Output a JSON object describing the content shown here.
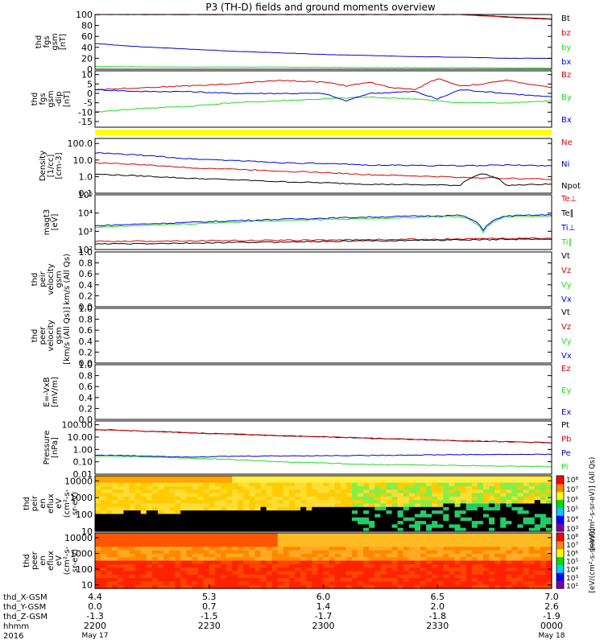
{
  "title": "P3 (TH-D) fields and ground moments overview",
  "colors": {
    "black": "#000000",
    "red": "#dd0000",
    "green": "#22dd22",
    "blue": "#0000dd",
    "yellow": "#ffff00"
  },
  "chart_data": [
    {
      "type": "line",
      "panel": "fgs-gsm",
      "ylabel": [
        "thd",
        "fgs",
        "gsm",
        "[nT]"
      ],
      "ylim": [
        0,
        100
      ],
      "yticks": [
        "0",
        "20",
        "40",
        "60",
        "80",
        "100"
      ],
      "ytick_values": [
        0,
        20,
        40,
        60,
        80,
        100
      ],
      "series": [
        {
          "name": "Bt",
          "color": "#000000",
          "x": [
            0,
            0.2,
            0.4,
            0.6,
            0.8,
            0.9,
            1
          ],
          "y": [
            100,
            100,
            100,
            100,
            100,
            96,
            92
          ]
        },
        {
          "name": "bz",
          "color": "#dd0000",
          "x": [
            0,
            0.2,
            0.4,
            0.6,
            0.8,
            0.9,
            1
          ],
          "y": [
            100,
            100,
            100,
            100,
            100,
            95,
            91
          ]
        },
        {
          "name": "by",
          "color": "#22dd22",
          "x": [
            0,
            0.2,
            0.4,
            0.6,
            0.8,
            1
          ],
          "y": [
            5,
            4,
            4,
            3,
            3,
            2
          ]
        },
        {
          "name": "bx",
          "color": "#0000dd",
          "x": [
            0,
            0.1,
            0.2,
            0.3,
            0.4,
            0.5,
            0.6,
            0.7,
            0.8,
            0.9,
            1
          ],
          "y": [
            47,
            41,
            37,
            33,
            30,
            27,
            25,
            23,
            22,
            20,
            20
          ]
        }
      ]
    },
    {
      "type": "line",
      "panel": "fgs-gsm-dip",
      "ylabel": [
        "thd",
        "fgs",
        "gsm",
        "-dip",
        "[nT]"
      ],
      "ylim": [
        -18,
        12
      ],
      "yticks": [
        "-15",
        "-10",
        "-5",
        "0",
        "5",
        "10"
      ],
      "ytick_values": [
        -15,
        -10,
        -5,
        0,
        5,
        10
      ],
      "series": [
        {
          "name": "Bz",
          "color": "#dd0000",
          "x": [
            0,
            0.1,
            0.2,
            0.3,
            0.4,
            0.5,
            0.55,
            0.6,
            0.65,
            0.7,
            0.75,
            0.8,
            0.85,
            0.9,
            0.95,
            1
          ],
          "y": [
            2,
            3,
            4,
            5,
            7,
            6,
            4,
            6,
            3,
            2,
            8,
            4,
            5,
            7,
            5,
            3
          ]
        },
        {
          "name": "By",
          "color": "#22dd22",
          "x": [
            0,
            0.1,
            0.2,
            0.3,
            0.4,
            0.5,
            0.6,
            0.7,
            0.8,
            0.9,
            1
          ],
          "y": [
            -10,
            -8,
            -7,
            -5,
            -4,
            -3,
            -2,
            -3,
            -5,
            -5,
            -4
          ]
        },
        {
          "name": "Bx",
          "color": "#0000dd",
          "x": [
            0,
            0.1,
            0.2,
            0.3,
            0.4,
            0.5,
            0.55,
            0.6,
            0.7,
            0.75,
            0.8,
            0.9,
            1
          ],
          "y": [
            2,
            1,
            1,
            0,
            0,
            0,
            -4,
            0,
            1,
            -3,
            2,
            0,
            -2
          ]
        }
      ]
    },
    {
      "type": "line",
      "panel": "density",
      "yscale": "log",
      "ylabel": [
        "Density",
        "[1/cc]",
        "[cm-3]"
      ],
      "ylim": [
        0.1,
        200
      ],
      "yticks": [
        "0.1",
        "1.0",
        "10.0",
        "100.0"
      ],
      "ytick_values": [
        0.1,
        1,
        10,
        100
      ],
      "series": [
        {
          "name": "Ne",
          "color": "#dd0000",
          "x": [
            0,
            0.2,
            0.4,
            0.6,
            0.8,
            1
          ],
          "y": [
            7,
            3.5,
            2.2,
            1.3,
            0.9,
            0.7
          ]
        },
        {
          "name": "Ni",
          "color": "#0000dd",
          "x": [
            0,
            0.2,
            0.4,
            0.6,
            0.8,
            0.9,
            1
          ],
          "y": [
            27,
            12,
            7,
            5,
            4.5,
            5,
            4.5
          ]
        },
        {
          "name": "Npot",
          "color": "#000000",
          "x": [
            0,
            0.2,
            0.4,
            0.6,
            0.8,
            0.85,
            0.9,
            1
          ],
          "y": [
            1.4,
            0.8,
            0.5,
            0.35,
            0.3,
            1.5,
            0.3,
            0.35
          ]
        }
      ]
    },
    {
      "type": "line",
      "panel": "temperature",
      "yscale": "log",
      "ylabel": [
        "magt3",
        "[eV]"
      ],
      "ylim": [
        100,
        100000
      ],
      "yticks": [
        "10²",
        "10³",
        "10⁴",
        "10⁵"
      ],
      "ytick_values": [
        100,
        1000,
        10000,
        100000
      ],
      "series": [
        {
          "name": "Te⊥",
          "color": "#dd0000",
          "x": [
            0,
            0.2,
            0.4,
            0.6,
            0.8,
            1
          ],
          "y": [
            280,
            300,
            320,
            350,
            380,
            420
          ]
        },
        {
          "name": "Te∥",
          "color": "#000000",
          "x": [
            0,
            0.2,
            0.4,
            0.6,
            0.8,
            1
          ],
          "y": [
            200,
            220,
            260,
            300,
            340,
            380
          ]
        },
        {
          "name": "Ti⊥",
          "color": "#0000dd",
          "x": [
            0,
            0.2,
            0.4,
            0.6,
            0.8,
            0.85,
            0.9,
            1
          ],
          "y": [
            2000,
            3000,
            4500,
            6000,
            7500,
            1200,
            7000,
            8000
          ]
        },
        {
          "name": "Ti∥",
          "color": "#22dd22",
          "x": [
            0,
            0.2,
            0.4,
            0.6,
            0.8,
            0.85,
            0.9,
            1
          ],
          "y": [
            1600,
            2500,
            3800,
            5000,
            6500,
            900,
            6000,
            7000
          ]
        }
      ]
    },
    {
      "type": "line",
      "panel": "peir-velocity",
      "ylabel": [
        "thd",
        "peir",
        "velocity",
        "gsm",
        "km/s (All Qs)"
      ],
      "ylim": [
        0,
        1
      ],
      "yticks": [
        "0.0",
        "0.2",
        "0.4",
        "0.6",
        "0.8",
        "1.0"
      ],
      "ytick_values": [
        0,
        0.2,
        0.4,
        0.6,
        0.8,
        1
      ],
      "series": [
        {
          "name": "Vt",
          "color": "#000000"
        },
        {
          "name": "Vz",
          "color": "#dd0000"
        },
        {
          "name": "Vy",
          "color": "#22dd22"
        },
        {
          "name": "Vx",
          "color": "#0000dd"
        }
      ]
    },
    {
      "type": "line",
      "panel": "peer-velocity",
      "ylabel": [
        "thd",
        "peer",
        "velocity",
        "gsm",
        "[km/s (All Qs)]"
      ],
      "ylim": [
        0,
        1
      ],
      "yticks": [
        "0.0",
        "0.2",
        "0.4",
        "0.6",
        "0.8",
        "1.0"
      ],
      "ytick_values": [
        0,
        0.2,
        0.4,
        0.6,
        0.8,
        1
      ],
      "series": [
        {
          "name": "Vt",
          "color": "#000000"
        },
        {
          "name": "Vz",
          "color": "#dd0000"
        },
        {
          "name": "Vy",
          "color": "#22dd22"
        },
        {
          "name": "Vx",
          "color": "#0000dd"
        }
      ]
    },
    {
      "type": "line",
      "panel": "efield",
      "ylabel": [
        "E=-VxB",
        "[mV/m]"
      ],
      "ylim": [
        0,
        1
      ],
      "yticks": [
        "0.0",
        "0.2",
        "0.4",
        "0.6",
        "0.8",
        "1.0"
      ],
      "ytick_values": [
        0,
        0.2,
        0.4,
        0.6,
        0.8,
        1
      ],
      "series": [
        {
          "name": "Ez",
          "color": "#dd0000"
        },
        {
          "name": "Ey",
          "color": "#22dd22"
        },
        {
          "name": "Ex",
          "color": "#0000dd"
        }
      ]
    },
    {
      "type": "line",
      "panel": "pressure",
      "yscale": "log",
      "ylabel": [
        "Pressure",
        "[nPa]"
      ],
      "ylim": [
        0.01,
        200
      ],
      "yticks": [
        "0.01",
        "0.10",
        "1.00",
        "10.00",
        "100.00"
      ],
      "ytick_values": [
        0.01,
        0.1,
        1,
        10,
        100
      ],
      "series": [
        {
          "name": "Pt",
          "color": "#000000",
          "x": [
            0,
            0.2,
            0.4,
            0.6,
            0.8,
            1
          ],
          "y": [
            40,
            22,
            13,
            8,
            5,
            3.5
          ]
        },
        {
          "name": "Pb",
          "color": "#dd0000",
          "x": [
            0,
            0.2,
            0.4,
            0.6,
            0.8,
            1
          ],
          "y": [
            40,
            22,
            13,
            8,
            5,
            3.5
          ]
        },
        {
          "name": "Pe",
          "color": "#0000dd",
          "x": [
            0,
            0.2,
            0.4,
            0.6,
            0.8,
            1
          ],
          "y": [
            0.35,
            0.25,
            0.3,
            0.33,
            0.38,
            0.4
          ]
        },
        {
          "name": "Pi",
          "color": "#22dd22",
          "x": [
            0,
            0.2,
            0.4,
            0.6,
            0.8,
            1
          ],
          "y": [
            0.3,
            0.2,
            0.1,
            0.06,
            0.05,
            0.04
          ]
        }
      ]
    },
    {
      "type": "heatmap",
      "panel": "peir-spectrogram",
      "yscale": "log",
      "ylabel": [
        "thd",
        "peir",
        "en",
        "eflux",
        "eV",
        "(cm²-s-",
        "sr-eV)"
      ],
      "ylim": [
        10,
        20000
      ],
      "yticks": [
        "10",
        "100",
        "1000",
        "10000"
      ],
      "ytick_values": [
        10,
        100,
        1000,
        10000
      ],
      "colorbar": {
        "ticks": [
          "10⁸",
          "10⁷",
          "10⁶",
          "10⁵",
          "10⁴",
          "10³"
        ],
        "label": "[eV/(cm²-s-sr-eV)] (All Qs)"
      }
    },
    {
      "type": "heatmap",
      "panel": "peer-spectrogram",
      "yscale": "log",
      "ylabel": [
        "thd",
        "peer",
        "en",
        "eflux",
        "eV",
        "(cm²-s-",
        "sr-eV)"
      ],
      "ylim": [
        6,
        20000
      ],
      "yticks": [
        "10",
        "100",
        "1000",
        "10000"
      ],
      "ytick_values": [
        10,
        100,
        1000,
        10000
      ],
      "colorbar": {
        "ticks": [
          "10⁸",
          "10⁷",
          "10⁶",
          "10⁵",
          "10⁴",
          "10³",
          "10²"
        ],
        "label": "[eV/(cm²-s-sr-eV)]"
      }
    }
  ],
  "x_axis": {
    "row_labels": [
      "thd_X-GSM",
      "thd_Y-GSM",
      "thd_Z-GSM",
      "hhmm",
      "2016"
    ],
    "columns": [
      {
        "x": "4.4",
        "y": "0.0",
        "z": "-1.3",
        "hhmm": "2200",
        "date": "May 17"
      },
      {
        "x": "5.3",
        "y": "0.7",
        "z": "-1.5",
        "hhmm": "2230",
        "date": ""
      },
      {
        "x": "6.0",
        "y": "1.4",
        "z": "-1.7",
        "hhmm": "2300",
        "date": ""
      },
      {
        "x": "6.5",
        "y": "2.0",
        "z": "-1.8",
        "hhmm": "2330",
        "date": ""
      },
      {
        "x": "7.0",
        "y": "2.6",
        "z": "-1.9",
        "hhmm": "0000",
        "date": "May 18"
      }
    ]
  }
}
